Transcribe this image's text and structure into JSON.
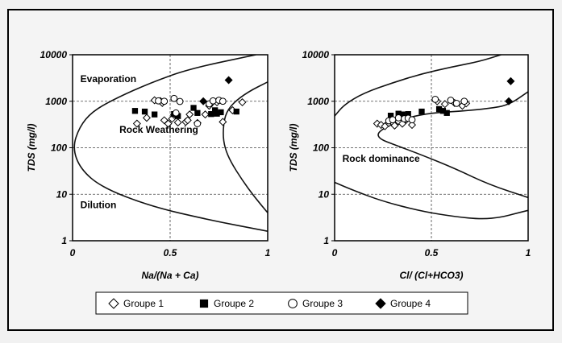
{
  "chart_data": [
    {
      "type": "scatter",
      "xlabel": "Na/(Na + Ca)",
      "ylabel": "TDS (mg/l)",
      "xlim": [
        0,
        1
      ],
      "ylim": [
        1,
        10000
      ],
      "yscale": "log",
      "x_ticks": [
        "0",
        "0.5",
        "1"
      ],
      "y_ticks": [
        "1",
        "10",
        "100",
        "1000",
        "10000"
      ],
      "grid": "dashed at x=0.5 and each decade",
      "annotations": [
        {
          "text": "Evaporation",
          "x": 0.04,
          "y": 2600
        },
        {
          "text": "Rock Weathering",
          "x": 0.24,
          "y": 210
        },
        {
          "text": "Dilution",
          "x": 0.04,
          "y": 5
        }
      ],
      "boundary_curves": [
        [
          [
            0.94,
            10000
          ],
          [
            0.6,
            5000
          ],
          [
            0.4,
            2500
          ],
          [
            0.22,
            1150
          ],
          [
            0.1,
            600
          ],
          [
            0.035,
            280
          ],
          [
            0.0,
            100
          ],
          [
            0.04,
            35
          ],
          [
            0.15,
            14
          ],
          [
            0.4,
            5.5
          ],
          [
            0.7,
            2.8
          ],
          [
            1.0,
            1.6
          ]
        ],
        [
          [
            1.0,
            2600
          ],
          [
            0.9,
            1600
          ],
          [
            0.82,
            900
          ],
          [
            0.78,
            500
          ],
          [
            0.77,
            200
          ],
          [
            0.78,
            100
          ],
          [
            0.81,
            50
          ],
          [
            0.87,
            20
          ],
          [
            0.93,
            9
          ],
          [
            1.0,
            4
          ]
        ]
      ],
      "series": [
        {
          "name": "Groupe 1",
          "marker": "diamond-open",
          "points": [
            [
              0.33,
              330
            ],
            [
              0.38,
              440
            ],
            [
              0.42,
              1050
            ],
            [
              0.45,
              1010
            ],
            [
              0.46,
              920
            ],
            [
              0.47,
              390
            ],
            [
              0.49,
              330
            ],
            [
              0.51,
              420
            ],
            [
              0.52,
              510
            ],
            [
              0.54,
              350
            ],
            [
              0.58,
              360
            ],
            [
              0.59,
              390
            ],
            [
              0.6,
              520
            ],
            [
              0.64,
              340
            ],
            [
              0.68,
              520
            ],
            [
              0.7,
              800
            ],
            [
              0.71,
              900
            ],
            [
              0.74,
              950
            ],
            [
              0.77,
              360
            ],
            [
              0.82,
              640
            ],
            [
              0.87,
              950
            ]
          ]
        },
        {
          "name": "Groupe 2",
          "marker": "square-filled",
          "points": [
            [
              0.32,
              620
            ],
            [
              0.37,
              600
            ],
            [
              0.42,
              520
            ],
            [
              0.52,
              530
            ],
            [
              0.54,
              480
            ],
            [
              0.62,
              720
            ],
            [
              0.64,
              560
            ],
            [
              0.71,
              530
            ],
            [
              0.73,
              640
            ],
            [
              0.74,
              540
            ],
            [
              0.76,
              580
            ],
            [
              0.84,
              600
            ]
          ]
        },
        {
          "name": "Groupe 3",
          "marker": "circle-open",
          "points": [
            [
              0.44,
              1020
            ],
            [
              0.47,
              1000
            ],
            [
              0.52,
              1150
            ],
            [
              0.53,
              560
            ],
            [
              0.55,
              990
            ],
            [
              0.64,
              330
            ],
            [
              0.7,
              880
            ],
            [
              0.72,
              1020
            ],
            [
              0.75,
              1050
            ],
            [
              0.77,
              1000
            ]
          ]
        },
        {
          "name": "Groupe 4",
          "marker": "diamond-filled",
          "points": [
            [
              0.67,
              1000
            ],
            [
              0.8,
              2850
            ]
          ]
        }
      ]
    },
    {
      "type": "scatter",
      "xlabel": "Cl/ (Cl+HCO3)",
      "ylabel": "TDS (mg/l)",
      "xlim": [
        0,
        1
      ],
      "ylim": [
        1,
        10000
      ],
      "yscale": "log",
      "x_ticks": [
        "0",
        "0.5",
        "1"
      ],
      "y_ticks": [
        "1",
        "10",
        "100",
        "1000",
        "10000"
      ],
      "grid": "dashed at x=0.5 and each decade",
      "annotations": [
        {
          "text": "Rock dominance",
          "x": 0.04,
          "y": 50
        }
      ],
      "boundary_curves": [
        [
          [
            0.0,
            480
          ],
          [
            0.05,
            850
          ],
          [
            0.15,
            1500
          ],
          [
            0.3,
            2500
          ],
          [
            0.45,
            3900
          ],
          [
            0.6,
            5400
          ],
          [
            0.75,
            7200
          ],
          [
            0.86,
            10000
          ]
        ],
        [
          [
            1.0,
            1600
          ],
          [
            0.9,
            830
          ],
          [
            0.8,
            700
          ],
          [
            0.65,
            610
          ],
          [
            0.5,
            560
          ],
          [
            0.38,
            450
          ],
          [
            0.3,
            330
          ],
          [
            0.24,
            240
          ],
          [
            0.22,
            190
          ],
          [
            0.24,
            150
          ],
          [
            0.3,
            120
          ],
          [
            0.45,
            70
          ],
          [
            0.62,
            36
          ],
          [
            0.8,
            16
          ],
          [
            1.0,
            8.5
          ]
        ],
        [
          [
            0.0,
            18
          ],
          [
            0.1,
            12
          ],
          [
            0.25,
            7
          ],
          [
            0.45,
            4.3
          ],
          [
            0.62,
            3.3
          ],
          [
            0.76,
            2.9
          ],
          [
            0.86,
            3.2
          ],
          [
            0.94,
            3.9
          ],
          [
            1.0,
            4.5
          ]
        ]
      ],
      "series": [
        {
          "name": "Groupe 1",
          "marker": "diamond-open",
          "points": [
            [
              0.22,
              330
            ],
            [
              0.24,
              310
            ],
            [
              0.26,
              290
            ],
            [
              0.28,
              340
            ],
            [
              0.3,
              350
            ],
            [
              0.31,
              300
            ],
            [
              0.33,
              370
            ],
            [
              0.35,
              330
            ],
            [
              0.37,
              400
            ],
            [
              0.4,
              310
            ],
            [
              0.53,
              1000
            ],
            [
              0.57,
              870
            ],
            [
              0.62,
              920
            ],
            [
              0.66,
              800
            ],
            [
              0.68,
              900
            ]
          ]
        },
        {
          "name": "Groupe 2",
          "marker": "square-filled",
          "points": [
            [
              0.29,
              490
            ],
            [
              0.33,
              540
            ],
            [
              0.35,
              520
            ],
            [
              0.38,
              530
            ],
            [
              0.45,
              600
            ],
            [
              0.54,
              680
            ],
            [
              0.56,
              620
            ],
            [
              0.58,
              560
            ]
          ]
        },
        {
          "name": "Groupe 3",
          "marker": "circle-open",
          "points": [
            [
              0.28,
              380
            ],
            [
              0.3,
              400
            ],
            [
              0.33,
              440
            ],
            [
              0.36,
              420
            ],
            [
              0.38,
              430
            ],
            [
              0.4,
              400
            ],
            [
              0.52,
              1100
            ],
            [
              0.6,
              1050
            ],
            [
              0.63,
              900
            ],
            [
              0.67,
              1000
            ]
          ]
        },
        {
          "name": "Groupe 4",
          "marker": "diamond-filled",
          "points": [
            [
              0.9,
              1000
            ],
            [
              0.91,
              2700
            ]
          ]
        }
      ]
    }
  ],
  "legend": {
    "placement": "bottom",
    "items": [
      {
        "label": "Groupe 1",
        "marker": "diamond-open"
      },
      {
        "label": "Groupe 2",
        "marker": "square-filled"
      },
      {
        "label": "Groupe 3",
        "marker": "circle-open"
      },
      {
        "label": "Groupe 4",
        "marker": "diamond-filled"
      }
    ]
  },
  "colors": {
    "ink": "#000000",
    "background": "#f1f1f1",
    "gridline": "#444444"
  }
}
